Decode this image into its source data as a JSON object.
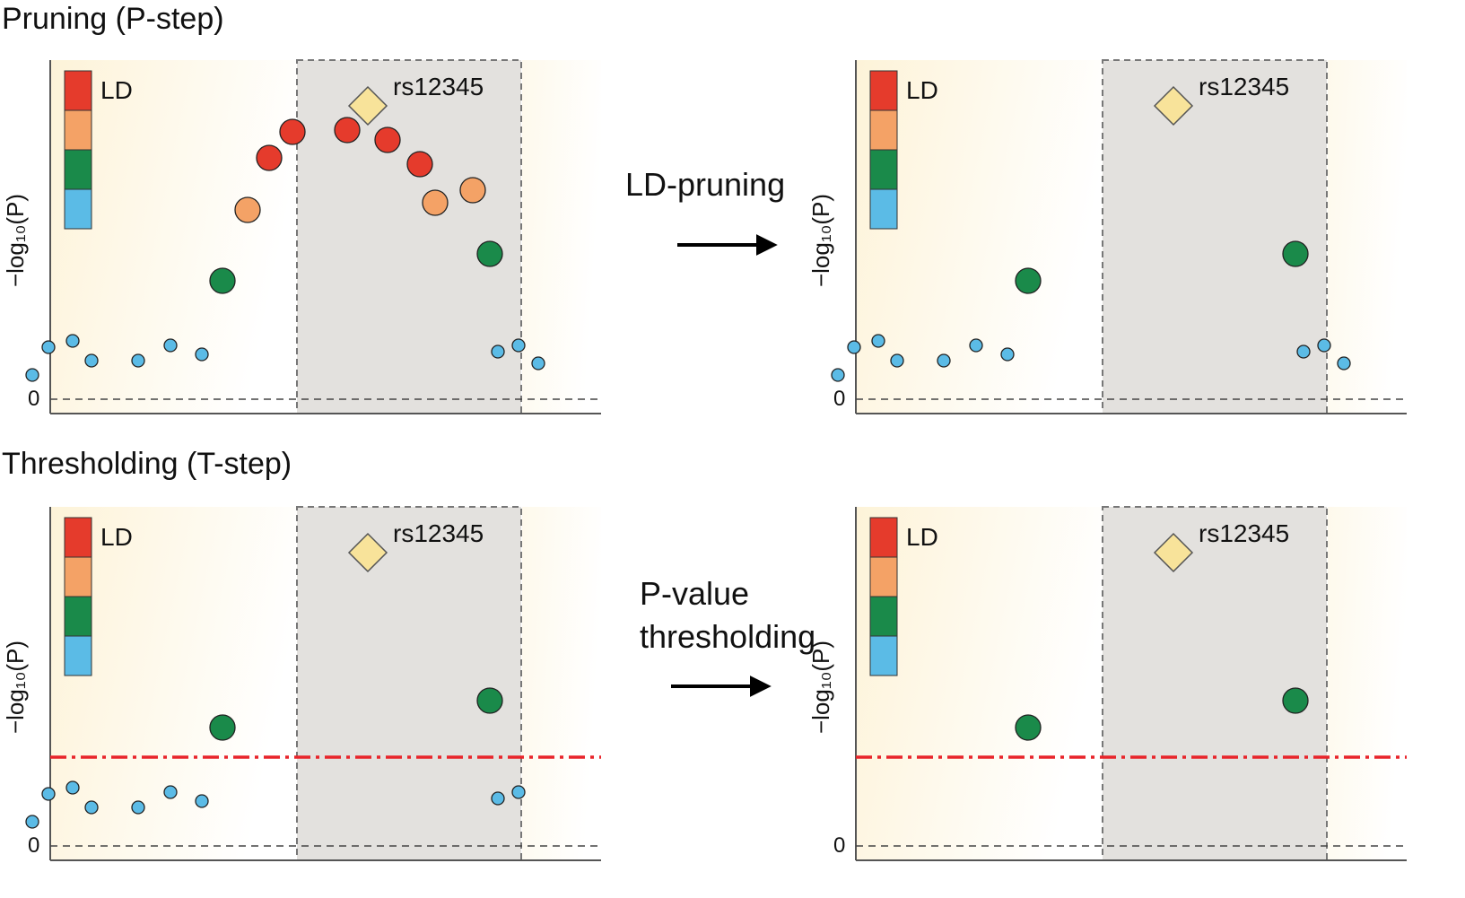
{
  "sections": [
    {
      "title": "Pruning (P-step)",
      "arrow_label_lines": [
        "LD-pruning"
      ],
      "left_panel": {
        "ylabel": "−log₁₀(P)",
        "zero_label": "0",
        "legend_label": "LD",
        "snp_label": "rs12345",
        "threshold": false
      },
      "right_panel": {
        "ylabel": "−log₁₀(P)",
        "zero_label": "0",
        "legend_label": "LD",
        "snp_label": "rs12345",
        "threshold": false
      }
    },
    {
      "title": "Thresholding (T-step)",
      "arrow_label_lines": [
        "P-value",
        "thresholding"
      ],
      "left_panel": {
        "ylabel": "−log₁₀(P)",
        "zero_label": "0",
        "legend_label": "LD",
        "snp_label": "rs12345",
        "threshold": true
      },
      "right_panel": {
        "ylabel": "−log₁₀(P)",
        "zero_label": "0",
        "legend_label": "LD",
        "snp_label": "rs12345",
        "threshold": true
      }
    }
  ],
  "colors": {
    "ld_high": "#e53b2c",
    "ld_mid": "#f4a266",
    "ld_low": "#1a8a4a",
    "ld_none": "#5bbbe6",
    "lead_snp": "#f8e39a",
    "region_shade": "#e3e1de",
    "threshold_line": "#e8242a",
    "background_tint": "#fdf6e3"
  }
}
